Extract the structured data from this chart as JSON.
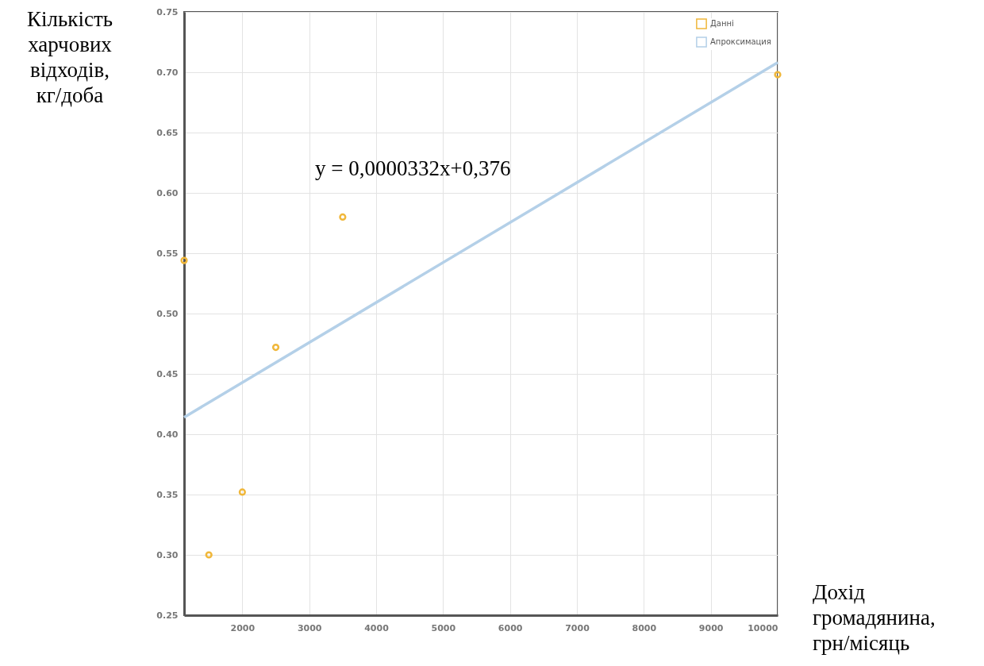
{
  "chart_data": {
    "type": "scatter",
    "xlabel": "Дохід громадянина, грн/місяць",
    "ylabel": "Кількість харчових відходів, кг/доба",
    "annotations": [
      "y = 0,0000332x+0,376"
    ],
    "xlim": [
      1130,
      10000
    ],
    "xticks": [
      2000,
      3000,
      4000,
      5000,
      6000,
      7000,
      8000,
      9000,
      10000
    ],
    "ylim": [
      0.25,
      0.75
    ],
    "yticks": [
      {
        "value": 0.25,
        "label": "0.25"
      },
      {
        "value": 0.3,
        "label": "0.30"
      },
      {
        "value": 0.35,
        "label": "0.35"
      },
      {
        "value": 0.4,
        "label": "0.40"
      },
      {
        "value": 0.45,
        "label": "0.45"
      },
      {
        "value": 0.5,
        "label": "0.50"
      },
      {
        "value": 0.55,
        "label": "0.55"
      },
      {
        "value": 0.6,
        "label": "0.60"
      },
      {
        "value": 0.65,
        "label": "0.65"
      },
      {
        "value": 0.7,
        "label": "0.70"
      },
      {
        "value": 0.75,
        "label": "0.75"
      }
    ],
    "grid": true,
    "legend": "top right",
    "series": [
      {
        "name": "Данні",
        "marker": "circle",
        "color": "#f0b73a",
        "x": [
          1130,
          1500,
          2000,
          2500,
          3500,
          10000
        ],
        "values": [
          0.544,
          0.3,
          0.352,
          0.472,
          0.58,
          0.698
        ]
      },
      {
        "name": "Апроксимация",
        "type": "line",
        "color": "#b4d0e8",
        "x": [
          1130,
          10000
        ],
        "values": [
          0.414,
          0.708
        ]
      }
    ]
  }
}
